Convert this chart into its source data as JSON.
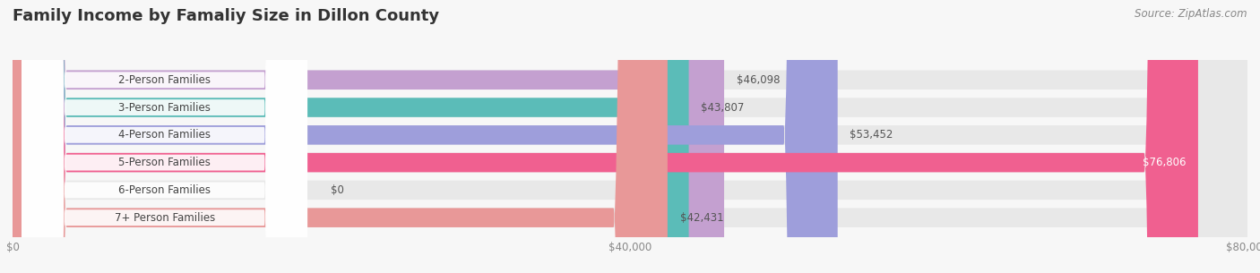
{
  "title": "Family Income by Famaliy Size in Dillon County",
  "source": "Source: ZipAtlas.com",
  "categories": [
    "2-Person Families",
    "3-Person Families",
    "4-Person Families",
    "5-Person Families",
    "6-Person Families",
    "7+ Person Families"
  ],
  "values": [
    46098,
    43807,
    53452,
    76806,
    0,
    42431
  ],
  "bar_colors": [
    "#c4a0d0",
    "#5bbcb8",
    "#9e9edb",
    "#f06090",
    "#f5c89a",
    "#e89898"
  ],
  "value_labels": [
    "$46,098",
    "$43,807",
    "$53,452",
    "$76,806",
    "$0",
    "$42,431"
  ],
  "x_ticks": [
    0,
    40000,
    80000
  ],
  "x_tick_labels": [
    "$0",
    "$40,000",
    "$80,000"
  ],
  "xlim": [
    0,
    80000
  ],
  "background_color": "#f7f7f7",
  "bar_bg_color": "#e8e8e8",
  "title_fontsize": 13,
  "source_fontsize": 8.5,
  "label_fontsize": 8.5,
  "value_fontsize": 8.5
}
